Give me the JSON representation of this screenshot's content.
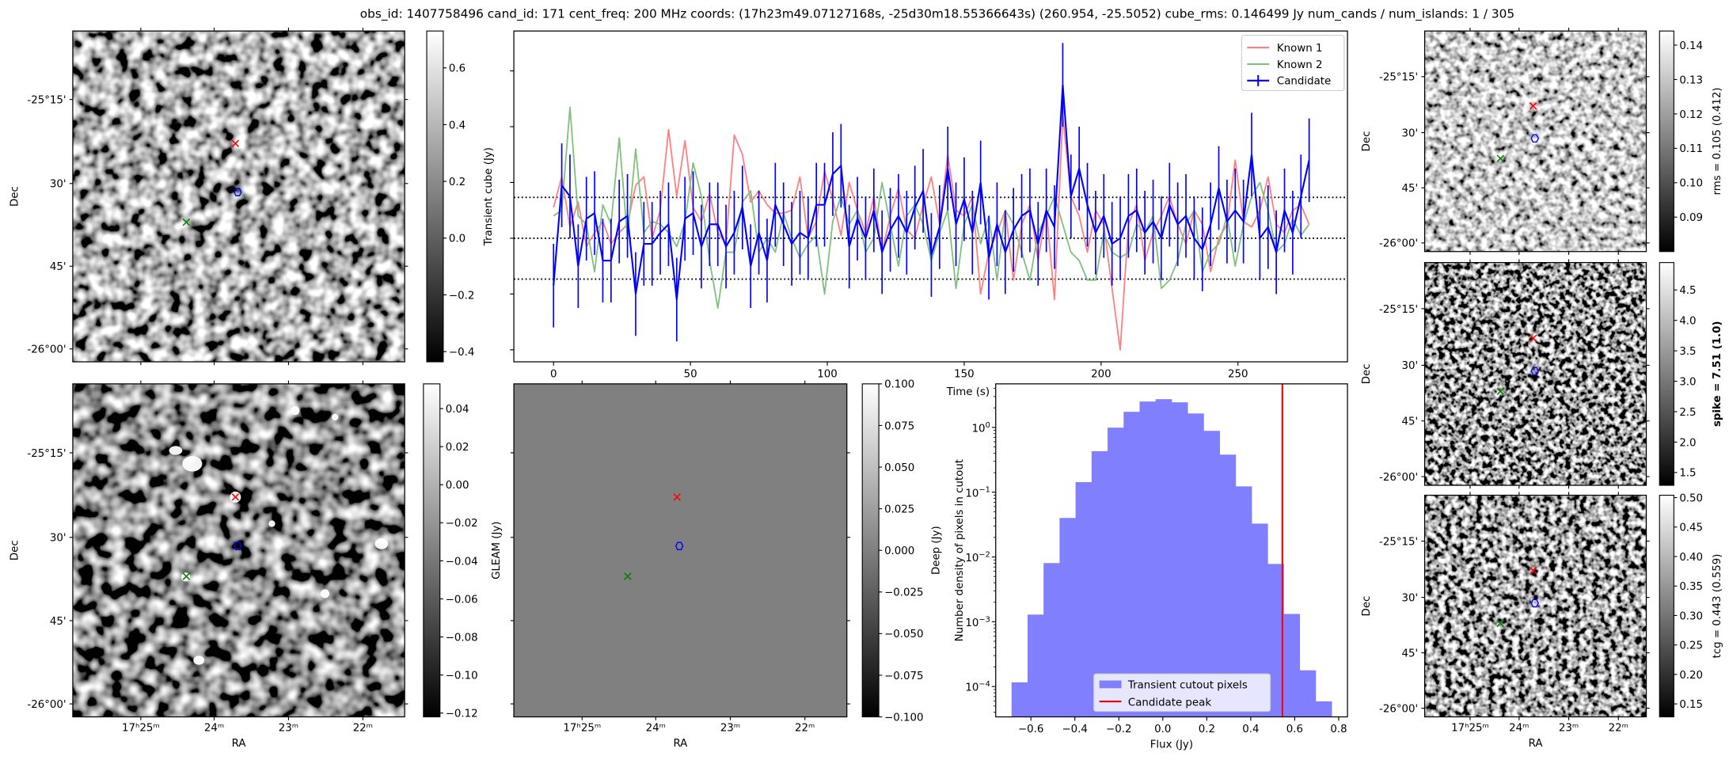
{
  "title": "obs_id: 1407758496 cand_id: 171 cent_freq: 200 MHz coords: (17h23m49.07127168s, -25d30m18.55366643s) (260.954, -25.5052) cube_rms: 0.146499 Jy num_cands / num_islands: 1 / 305",
  "colors": {
    "known1": "#ff8080",
    "known2": "#80c080",
    "candidate": "#0000ff",
    "hist": "#8080ff",
    "peak": "#ff0000",
    "marker_red": "#ff0000",
    "marker_green": "#008000",
    "marker_blue": "#0000ff",
    "deep_fill": "#808080"
  },
  "sky": {
    "ra_label": "RA",
    "dec_label": "Dec",
    "ra_ticks": [
      "17ʰ25ᵐ",
      "24ᵐ",
      "23ᵐ",
      "22ᵐ"
    ],
    "dec_ticks": [
      "-25°15'",
      "30'",
      "45'",
      "-26°00'"
    ]
  },
  "colorbars": {
    "transient": {
      "label": "Transient cube (Jy)",
      "range": [
        -0.436,
        0.73
      ],
      "ticks": [
        -0.4,
        -0.2,
        0.0,
        0.2,
        0.4,
        0.6
      ],
      "tick_labels": [
        "−0.4",
        "−0.2",
        "0.0",
        "0.2",
        "0.4",
        "0.6"
      ]
    },
    "gleam": {
      "label": "GLEAM (Jy)",
      "range": [
        -0.122,
        0.053
      ],
      "ticks": [
        -0.12,
        -0.1,
        -0.08,
        -0.06,
        -0.04,
        -0.02,
        0.0,
        0.02,
        0.04
      ],
      "tick_labels": [
        "−0.12",
        "−0.10",
        "−0.08",
        "−0.06",
        "−0.04",
        "−0.02",
        "0.00",
        "0.02",
        "0.04"
      ]
    },
    "deep": {
      "label": "Deep (Jy)",
      "range": [
        -0.1,
        0.1
      ],
      "ticks": [
        -0.1,
        -0.075,
        -0.05,
        -0.025,
        0.0,
        0.025,
        0.05,
        0.075,
        0.1
      ],
      "tick_labels": [
        "−0.100",
        "−0.075",
        "−0.050",
        "−0.025",
        "0.000",
        "0.025",
        "0.050",
        "0.075",
        "0.100"
      ]
    },
    "rms": {
      "label": "rms = 0.105 (0.412)",
      "range": [
        0.08,
        0.1441
      ],
      "ticks": [
        0.09,
        0.1,
        0.11,
        0.12,
        0.13,
        0.14
      ],
      "tick_labels": [
        "0.09",
        "0.10",
        "0.11",
        "0.12",
        "0.13",
        "0.14"
      ]
    },
    "spike": {
      "label": "spike = 7.51 (1.0)",
      "range": [
        1.29,
        4.95
      ],
      "ticks": [
        1.5,
        2.0,
        2.5,
        3.0,
        3.5,
        4.0,
        4.5
      ],
      "tick_labels": [
        "1.5",
        "2.0",
        "2.5",
        "3.0",
        "3.5",
        "4.0",
        "4.5"
      ]
    },
    "tcg": {
      "label": "tcg = 0.443 (0.559)",
      "range": [
        0.128,
        0.504
      ],
      "ticks": [
        0.15,
        0.2,
        0.25,
        0.3,
        0.35,
        0.4,
        0.45,
        0.5
      ],
      "tick_labels": [
        "0.15",
        "0.20",
        "0.25",
        "0.30",
        "0.35",
        "0.40",
        "0.45",
        "0.50"
      ]
    }
  },
  "chart_data": [
    {
      "type": "line",
      "title": "",
      "xlabel": "Time (s)",
      "ylabel": "",
      "xlim": [
        -14.5,
        290
      ],
      "ylim": [
        -0.443,
        0.743
      ],
      "xticks": [
        0,
        50,
        100,
        150,
        200,
        250
      ],
      "xtick_labels": [
        "0",
        "50",
        "100",
        "150",
        "200",
        "250"
      ],
      "yticks": [
        -0.4,
        -0.2,
        0.0,
        0.2,
        0.4,
        0.6
      ],
      "t_start": 0,
      "t_step": 3,
      "hlines": [
        -0.146499,
        0.0,
        0.146499
      ],
      "legend_position": "top-right",
      "series": [
        {
          "name": "Known 1",
          "color_key": "known1",
          "values": [
            0.11,
            0.22,
            0.04,
            0.13,
            -0.03,
            0.02,
            0.06,
            -0.02,
            0.02,
            0.05,
            0.19,
            0.22,
            0.0,
            0.1,
            0.39,
            0.15,
            0.35,
            0.11,
            0.06,
            0.16,
            0.02,
            -0.02,
            0.37,
            0.3,
            0.13,
            0.17,
            0.12,
            0.09,
            0.09,
            0.1,
            0.22,
            0.0,
            0.06,
            0.24,
            0.14,
            0.01,
            0.2,
            0.1,
            0.02,
            0.15,
            -0.05,
            0.08,
            0.18,
            0.03,
            0.0,
            0.12,
            0.22,
            0.05,
            0.3,
            0.1,
            0.08,
            0.15,
            -0.2,
            -0.05,
            0.02,
            0.1,
            -0.15,
            0.05,
            0.12,
            -0.08,
            0.1,
            -0.22,
            0.44,
            0.15,
            0.08,
            -0.05,
            0.1,
            0.05,
            -0.18,
            -0.4,
            0.05,
            0.12,
            -0.08,
            0.02,
            0.08,
            0.15,
            0.05,
            -0.02,
            0.1,
            0.05,
            -0.12,
            0.0,
            0.05,
            0.28,
            0.06,
            0.04,
            0.1,
            0.22,
            0.05,
            0.02,
            0.1,
            0.12,
            0.05
          ]
        },
        {
          "name": "Known 2",
          "color_key": "known2",
          "values": [
            0.08,
            0.1,
            0.47,
            0.08,
            0.05,
            -0.12,
            0.12,
            0.05,
            0.36,
            0.0,
            0.32,
            0.02,
            0.06,
            0.05,
            0.02,
            -0.03,
            0.06,
            0.27,
            0.15,
            -0.08,
            -0.25,
            -0.05,
            -0.05,
            0.13,
            0.17,
            -0.05,
            0.0,
            -0.05,
            0.09,
            0.0,
            -0.07,
            -0.02,
            0.01,
            -0.2,
            0.06,
            0.15,
            0.05,
            0.1,
            -0.05,
            0.0,
            0.2,
            0.05,
            -0.1,
            0.08,
            0.12,
            0.05,
            -0.08,
            0.02,
            0.1,
            -0.18,
            0.05,
            0.12,
            -0.02,
            0.08,
            -0.15,
            0.1,
            0.05,
            -0.05,
            -0.15,
            0.02,
            0.08,
            0.15,
            0.05,
            -0.05,
            -0.08,
            -0.15,
            -0.15,
            0.02,
            -0.05,
            -0.07,
            -0.05,
            0.05,
            0.02,
            0.08,
            -0.18,
            -0.15,
            -0.08,
            0.05,
            0.1,
            -0.12,
            -0.05,
            -0.02,
            0.08,
            -0.1,
            0.05,
            0.15,
            0.2,
            0.1,
            -0.05,
            -0.02,
            0.07,
            0.01,
            0.05
          ]
        },
        {
          "name": "Candidate",
          "color_key": "candidate",
          "yerr": 0.15,
          "values": [
            -0.17,
            0.19,
            0.15,
            -0.1,
            0.07,
            0.09,
            -0.08,
            -0.08,
            0.06,
            0.08,
            -0.2,
            -0.02,
            -0.02,
            0.02,
            0.05,
            -0.22,
            0.07,
            0.09,
            -0.03,
            0.05,
            0.05,
            -0.03,
            0.02,
            0.11,
            -0.1,
            0.02,
            -0.08,
            0.12,
            0.05,
            -0.02,
            0.02,
            0.0,
            0.12,
            0.12,
            0.23,
            0.26,
            -0.03,
            0.07,
            0.0,
            0.1,
            -0.05,
            0.03,
            0.08,
            0.02,
            0.11,
            0.17,
            -0.06,
            0.04,
            0.25,
            0.05,
            0.14,
            0.02,
            0.2,
            -0.07,
            0.05,
            -0.05,
            0.03,
            0.08,
            0.1,
            -0.02,
            0.1,
            0.04,
            0.55,
            0.15,
            0.25,
            0.12,
            0.02,
            0.08,
            -0.02,
            0.0,
            0.08,
            0.1,
            0.02,
            0.06,
            0.0,
            0.12,
            0.05,
            0.08,
            0.0,
            -0.04,
            0.05,
            0.18,
            0.06,
            0.1,
            0.06,
            0.3,
            0.0,
            0.04,
            -0.05,
            0.1,
            0.02,
            0.15,
            0.28
          ]
        }
      ]
    },
    {
      "type": "bar",
      "title": "",
      "xlabel": "Flux (Jy)",
      "ylabel": "Number density of pixels in cutout",
      "yscale": "log",
      "xlim": [
        -0.76,
        0.84
      ],
      "ylim": [
        3.4e-05,
        4.7
      ],
      "xticks": [
        -0.6,
        -0.4,
        -0.2,
        0.0,
        0.2,
        0.4,
        0.6,
        0.8
      ],
      "xtick_labels": [
        "−0.6",
        "−0.4",
        "−0.2",
        "0.0",
        "0.2",
        "0.4",
        "0.6",
        "0.8"
      ],
      "yticks": [
        1,
        0.1,
        0.01,
        0.001,
        0.0001
      ],
      "ytick_labels": [
        [
          "10",
          "0"
        ],
        [
          "10",
          "−1"
        ],
        [
          "10",
          "−2"
        ],
        [
          "10",
          "−3"
        ],
        [
          "10",
          "−4"
        ]
      ],
      "bin_start": -0.688,
      "bin_width": 0.0728,
      "values": [
        0.000116,
        0.00129,
        0.00805,
        0.04,
        0.143,
        0.43,
        0.99,
        1.74,
        2.51,
        2.73,
        2.44,
        1.64,
        0.885,
        0.38,
        0.123,
        0.0327,
        0.0078,
        0.00132,
        0.000178,
        5.9e-05
      ],
      "candidate_peak": 0.544,
      "legend_position": "lower-center",
      "legend": [
        "Transient cutout pixels",
        "Candidate peak"
      ]
    }
  ]
}
